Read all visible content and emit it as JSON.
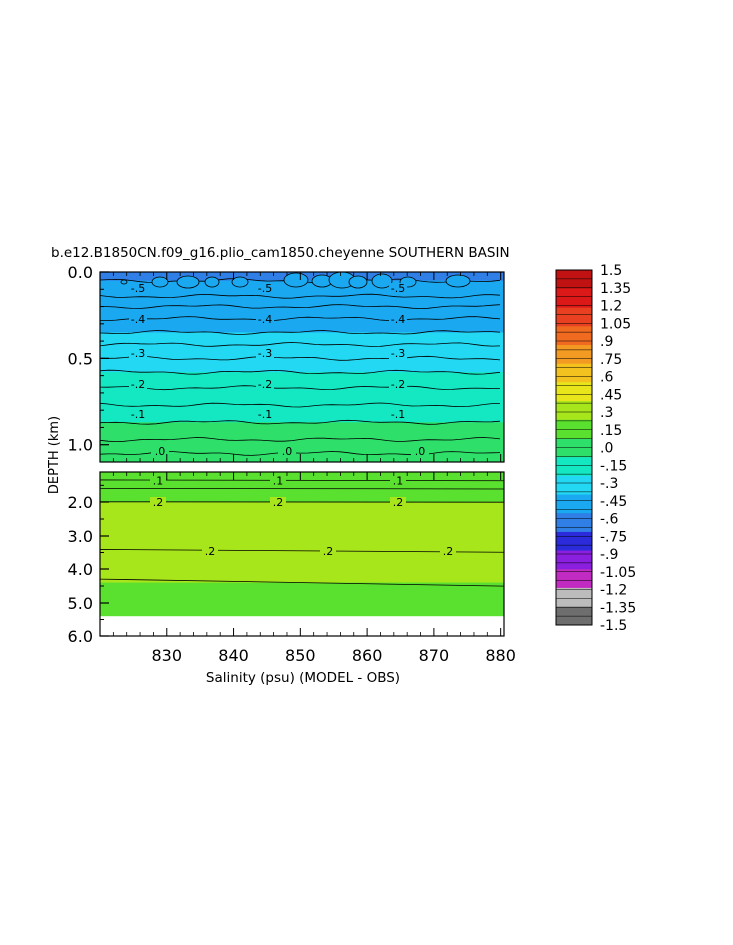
{
  "chart_data": {
    "type": "heatmap",
    "title": "b.e12.B1850CN.f09_g16.plio_cam1850.cheyenne SOUTHERN BASIN",
    "xlabel": "Salinity (psu) (MODEL - OBS)",
    "ylabel": "DEPTH (km)",
    "x_ticks": [
      "830",
      "840",
      "850",
      "860",
      "870",
      "880"
    ],
    "x_range": [
      820,
      880.5
    ],
    "upper_panel": {
      "depth_range": [
        0.0,
        1.1
      ],
      "y_ticks": [
        "0.0",
        "0.5",
        "1.0"
      ],
      "contour_labels": [
        ".5",
        ".4",
        ".3",
        ".2",
        ".1",
        ".0"
      ],
      "bands": [
        {
          "top": 0.0,
          "bottom": 0.05,
          "value": -0.58
        },
        {
          "top": 0.05,
          "bottom": 0.14,
          "value": -0.55
        },
        {
          "top": 0.14,
          "bottom": 0.2,
          "value": -0.5
        },
        {
          "top": 0.2,
          "bottom": 0.27,
          "value": -0.47
        },
        {
          "top": 0.27,
          "bottom": 0.35,
          "value": -0.42
        },
        {
          "top": 0.35,
          "bottom": 0.42,
          "value": -0.37
        },
        {
          "top": 0.42,
          "bottom": 0.5,
          "value": -0.33
        },
        {
          "top": 0.5,
          "bottom": 0.58,
          "value": -0.28
        },
        {
          "top": 0.58,
          "bottom": 0.67,
          "value": -0.22
        },
        {
          "top": 0.67,
          "bottom": 0.77,
          "value": -0.17
        },
        {
          "top": 0.77,
          "bottom": 0.87,
          "value": -0.12
        },
        {
          "top": 0.87,
          "bottom": 0.97,
          "value": -0.07
        },
        {
          "top": 0.97,
          "bottom": 1.05,
          "value": -0.02
        },
        {
          "top": 1.05,
          "bottom": 1.1,
          "value": 0.03
        }
      ]
    },
    "lower_panel": {
      "depth_range": [
        1.1,
        6.0
      ],
      "y_ticks": [
        "2.0",
        "3.0",
        "4.0",
        "5.0",
        "6.0"
      ],
      "contour_labels": [
        ".1",
        ".2",
        ".2"
      ],
      "bands": [
        {
          "top": 1.1,
          "bottom": 1.6,
          "value": 0.12
        },
        {
          "top": 1.6,
          "bottom": 2.0,
          "value": 0.17
        },
        {
          "top": 2.0,
          "bottom": 4.4,
          "value": 0.25
        },
        {
          "top": 4.4,
          "bottom": 5.4,
          "value": 0.2
        }
      ],
      "data_bottom": 5.4
    },
    "colorbar": {
      "labels": [
        "1.5",
        "1.35",
        "1.2",
        "1.05",
        ".9",
        ".75",
        ".6",
        ".45",
        ".3",
        ".15",
        ".0",
        "-.15",
        "-.3",
        "-.45",
        "-.6",
        "-.75",
        "-.9",
        "-1.05",
        "-1.2",
        "-1.35",
        "-1.5"
      ],
      "values": [
        1.5,
        1.35,
        1.2,
        1.05,
        0.9,
        0.75,
        0.6,
        0.45,
        0.3,
        0.15,
        0.0,
        -0.15,
        -0.3,
        -0.45,
        -0.6,
        -0.75,
        -0.9,
        -1.05,
        -1.2,
        -1.35,
        -1.5
      ],
      "range": [
        -1.5,
        1.5
      ],
      "colors": [
        "#6e6e6e",
        "#bcbcbc",
        "#c12bc1",
        "#8a1fe0",
        "#2b2bdc",
        "#2f7fe6",
        "#1aa8f0",
        "#22d8f2",
        "#14e8c2",
        "#2ee06a",
        "#5ae02e",
        "#a8e61c",
        "#e8e61a",
        "#f4c21e",
        "#f29a22",
        "#f06a20",
        "#e84020",
        "#dc1818",
        "#c01212"
      ]
    }
  }
}
